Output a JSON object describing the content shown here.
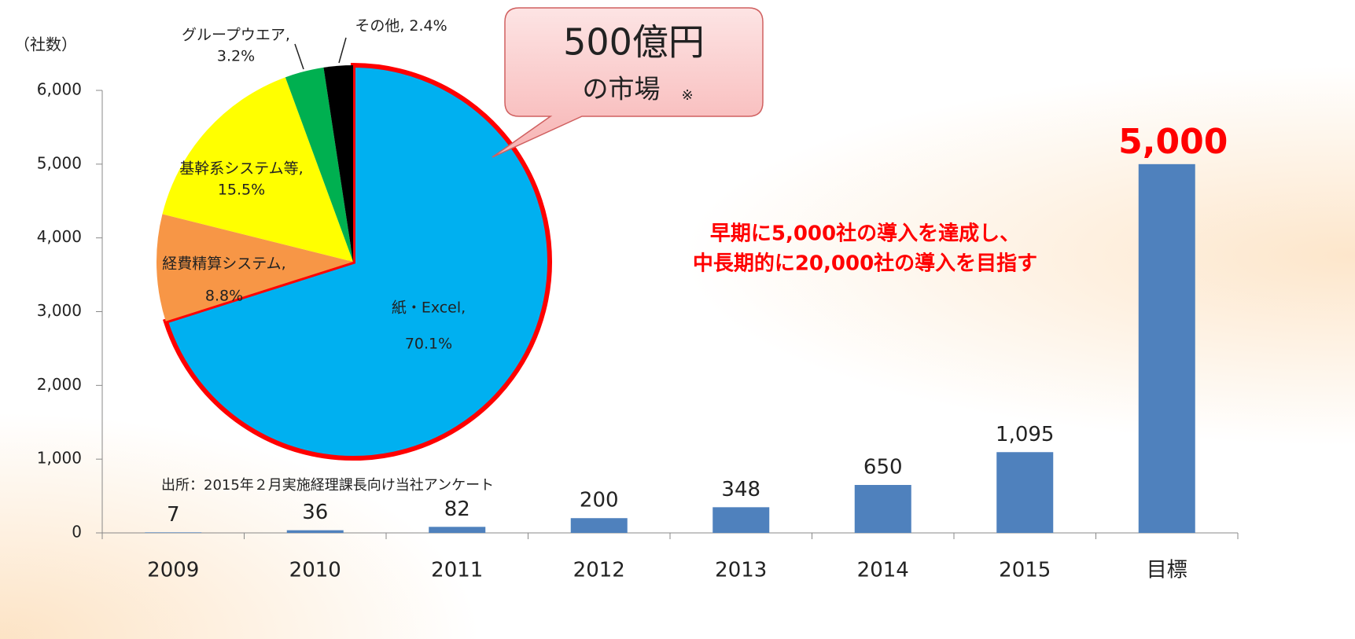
{
  "chart_data": [
    {
      "type": "bar",
      "y_label": "（社数）",
      "categories": [
        "2009",
        "2010",
        "2011",
        "2012",
        "2013",
        "2014",
        "2015",
        "目標"
      ],
      "values": [
        7,
        36,
        82,
        200,
        348,
        650,
        1095,
        5000
      ],
      "value_labels": [
        "7",
        "36",
        "82",
        "200",
        "348",
        "650",
        "1,095",
        "5,000"
      ],
      "value_label_colors": [
        "#222222",
        "#222222",
        "#222222",
        "#222222",
        "#222222",
        "#222222",
        "#222222",
        "#ff0000"
      ],
      "color": "#4f81bd",
      "ylim": [
        0,
        6000
      ],
      "yticks": [
        0,
        {
          "value": 1000,
          "label": "1,000"
        },
        {
          "value": 2000,
          "label": "2,000"
        },
        {
          "value": 3000,
          "label": "3,000"
        },
        {
          "value": 4000,
          "label": "4,000"
        },
        {
          "value": 5000,
          "label": "5,000"
        },
        {
          "value": 6000,
          "label": "6,000"
        }
      ],
      "annotations": [
        "早期に5,000社の導入を達成し、",
        "中長期的に20,000社の導入を目指す"
      ],
      "callout": {
        "title": "500億円",
        "subtitle": "の市場",
        "mark": "※"
      },
      "source": "出所：2015年２月実施経理課長向け当社アンケート"
    },
    {
      "type": "pie",
      "categories": [
        "紙・Excel,",
        "経費精算システム,",
        "基幹系システム等,",
        "グループウエア,",
        "その他,"
      ],
      "values": [
        70.1,
        8.8,
        15.5,
        3.2,
        2.4
      ],
      "value_labels": [
        "70.1%",
        "8.8%",
        "15.5%",
        "3.2%",
        "2.4%"
      ],
      "colors": [
        "#00b0f0",
        "#f79646",
        "#ffff00",
        "#00b050",
        "#000000"
      ],
      "outline_color": "#ff0000"
    }
  ]
}
